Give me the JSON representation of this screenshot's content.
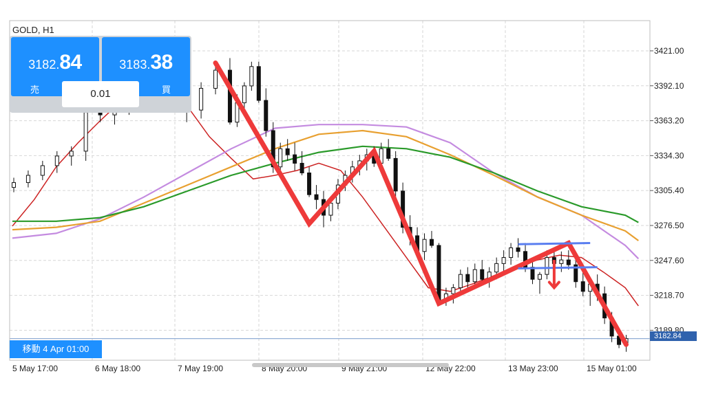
{
  "symbol": "GOLD, H1",
  "trade_panel": {
    "sell": {
      "price_small": "3182.",
      "price_big": "84",
      "label": "売"
    },
    "buy": {
      "price_small": "3183.",
      "price_big": "38",
      "label": "買"
    },
    "lot": "0.01"
  },
  "scroll_position_label": "移動 4 Apr 01:00",
  "current_price_tag": "3182.84",
  "chart_data": {
    "type": "line",
    "y_axis": {
      "ticks": [
        3421.0,
        3392.1,
        3363.2,
        3334.3,
        3305.4,
        3276.5,
        3247.6,
        3218.7,
        3189.8
      ],
      "tick_labels": [
        "3421.00",
        "3392.10",
        "3363.20",
        "3334.30",
        "3305.40",
        "3276.50",
        "3247.60",
        "3218.70",
        "3189.80"
      ],
      "ylim": [
        3165.0,
        3446.0
      ]
    },
    "x_axis": {
      "tick_labels": [
        "5 May 17:00",
        "6 May 18:00",
        "7 May 19:00",
        "8 May 20:00",
        "9 May 21:00",
        "12 May 22:00",
        "13 May 23:00",
        "15 May 01:00"
      ]
    },
    "grid": true,
    "current_price": 3182.84,
    "series": [
      {
        "color": "#cc2222",
        "points": [
          [
            0,
            3276
          ],
          [
            5,
            3298
          ],
          [
            10,
            3325
          ],
          [
            15,
            3345
          ],
          [
            20,
            3363
          ],
          [
            25,
            3380
          ],
          [
            30,
            3390
          ],
          [
            33,
            3398
          ],
          [
            36,
            3395
          ],
          [
            40,
            3375
          ],
          [
            45,
            3350
          ],
          [
            50,
            3332
          ],
          [
            55,
            3315
          ],
          [
            60,
            3318
          ],
          [
            65,
            3322
          ],
          [
            70,
            3328
          ],
          [
            75,
            3322
          ],
          [
            80,
            3300
          ],
          [
            85,
            3275
          ],
          [
            90,
            3250
          ],
          [
            95,
            3225
          ],
          [
            100,
            3222
          ],
          [
            105,
            3228
          ],
          [
            110,
            3235
          ],
          [
            115,
            3242
          ],
          [
            120,
            3248
          ],
          [
            125,
            3252
          ],
          [
            130,
            3250
          ],
          [
            135,
            3238
          ],
          [
            140,
            3225
          ],
          [
            143,
            3210
          ]
        ]
      },
      {
        "color": "#c48be0",
        "points": [
          [
            0,
            3266
          ],
          [
            10,
            3270
          ],
          [
            20,
            3282
          ],
          [
            30,
            3300
          ],
          [
            40,
            3320
          ],
          [
            50,
            3340
          ],
          [
            60,
            3357
          ],
          [
            70,
            3360
          ],
          [
            80,
            3360
          ],
          [
            90,
            3358
          ],
          [
            100,
            3345
          ],
          [
            110,
            3320
          ],
          [
            120,
            3300
          ],
          [
            130,
            3285
          ],
          [
            140,
            3260
          ],
          [
            143,
            3249
          ]
        ]
      },
      {
        "color": "#e8a030",
        "points": [
          [
            0,
            3273
          ],
          [
            10,
            3275
          ],
          [
            20,
            3280
          ],
          [
            30,
            3295
          ],
          [
            40,
            3310
          ],
          [
            50,
            3325
          ],
          [
            60,
            3340
          ],
          [
            70,
            3352
          ],
          [
            80,
            3355
          ],
          [
            90,
            3350
          ],
          [
            100,
            3335
          ],
          [
            110,
            3318
          ],
          [
            120,
            3300
          ],
          [
            130,
            3285
          ],
          [
            140,
            3272
          ],
          [
            143,
            3264
          ]
        ]
      },
      {
        "color": "#2a9a2a",
        "points": [
          [
            0,
            3280
          ],
          [
            10,
            3280
          ],
          [
            20,
            3283
          ],
          [
            30,
            3292
          ],
          [
            40,
            3305
          ],
          [
            50,
            3318
          ],
          [
            60,
            3328
          ],
          [
            70,
            3337
          ],
          [
            80,
            3342
          ],
          [
            90,
            3340
          ],
          [
            100,
            3333
          ],
          [
            110,
            3320
          ],
          [
            120,
            3305
          ],
          [
            130,
            3292
          ],
          [
            140,
            3285
          ],
          [
            143,
            3279
          ]
        ]
      }
    ],
    "candles": [
      [
        0,
        3308,
        3316,
        3304,
        3312
      ],
      [
        2,
        3312,
        3322,
        3308,
        3318
      ],
      [
        4,
        3318,
        3330,
        3314,
        3326
      ],
      [
        6,
        3326,
        3338,
        3320,
        3334
      ],
      [
        8,
        3334,
        3342,
        3326,
        3338
      ],
      [
        10,
        3338,
        3400,
        3330,
        3370
      ],
      [
        12,
        3370,
        3390,
        3362,
        3368
      ],
      [
        14,
        3368,
        3378,
        3360,
        3372
      ],
      [
        16,
        3372,
        3395,
        3368,
        3390
      ],
      [
        18,
        3390,
        3410,
        3380,
        3392
      ],
      [
        20,
        3392,
        3420,
        3385,
        3395
      ],
      [
        22,
        3395,
        3430,
        3380,
        3385
      ],
      [
        24,
        3385,
        3400,
        3362,
        3372
      ],
      [
        26,
        3372,
        3395,
        3365,
        3390
      ],
      [
        28,
        3390,
        3410,
        3385,
        3405
      ],
      [
        30,
        3405,
        3415,
        3360,
        3362
      ],
      [
        31,
        3362,
        3385,
        3358,
        3378
      ],
      [
        32,
        3378,
        3395,
        3370,
        3392
      ],
      [
        33,
        3392,
        3412,
        3388,
        3408
      ],
      [
        34,
        3408,
        3412,
        3378,
        3380
      ],
      [
        35,
        3380,
        3390,
        3350,
        3355
      ],
      [
        36,
        3355,
        3362,
        3320,
        3325
      ],
      [
        37,
        3325,
        3345,
        3318,
        3340
      ],
      [
        38,
        3340,
        3348,
        3330,
        3335
      ],
      [
        39,
        3335,
        3345,
        3322,
        3328
      ],
      [
        40,
        3328,
        3338,
        3318,
        3320
      ],
      [
        41,
        3320,
        3325,
        3300,
        3302
      ],
      [
        42,
        3302,
        3310,
        3290,
        3298
      ],
      [
        43,
        3298,
        3305,
        3275,
        3285
      ],
      [
        44,
        3285,
        3300,
        3280,
        3295
      ],
      [
        45,
        3295,
        3315,
        3290,
        3310
      ],
      [
        46,
        3310,
        3322,
        3305,
        3318
      ],
      [
        47,
        3318,
        3330,
        3312,
        3325
      ],
      [
        48,
        3325,
        3335,
        3318,
        3330
      ],
      [
        49,
        3330,
        3340,
        3322,
        3335
      ],
      [
        50,
        3335,
        3342,
        3325,
        3328
      ],
      [
        51,
        3328,
        3345,
        3320,
        3340
      ],
      [
        52,
        3340,
        3348,
        3330,
        3332
      ],
      [
        53,
        3332,
        3338,
        3300,
        3305
      ],
      [
        54,
        3305,
        3312,
        3270,
        3275
      ],
      [
        55,
        3275,
        3285,
        3260,
        3268
      ],
      [
        56,
        3268,
        3275,
        3250,
        3255
      ],
      [
        57,
        3255,
        3270,
        3248,
        3265
      ],
      [
        58,
        3265,
        3272,
        3258,
        3260
      ],
      [
        59,
        3260,
        3262,
        3210,
        3215
      ],
      [
        60,
        3215,
        3225,
        3210,
        3220
      ],
      [
        61,
        3220,
        3228,
        3212,
        3225
      ],
      [
        62,
        3225,
        3240,
        3220,
        3236
      ],
      [
        63,
        3236,
        3242,
        3225,
        3230
      ],
      [
        64,
        3230,
        3245,
        3226,
        3240
      ],
      [
        65,
        3240,
        3248,
        3228,
        3232
      ],
      [
        66,
        3232,
        3242,
        3225,
        3238
      ],
      [
        67,
        3238,
        3250,
        3232,
        3245
      ],
      [
        68,
        3245,
        3256,
        3238,
        3250
      ],
      [
        69,
        3250,
        3262,
        3244,
        3258
      ],
      [
        70,
        3258,
        3266,
        3250,
        3255
      ],
      [
        71,
        3255,
        3262,
        3238,
        3242
      ],
      [
        72,
        3242,
        3248,
        3228,
        3232
      ],
      [
        73,
        3232,
        3238,
        3220,
        3236
      ],
      [
        74,
        3236,
        3256,
        3232,
        3250
      ],
      [
        75,
        3250,
        3258,
        3240,
        3245
      ],
      [
        76,
        3245,
        3255,
        3238,
        3248
      ],
      [
        77,
        3248,
        3256,
        3240,
        3244
      ],
      [
        78,
        3244,
        3250,
        3225,
        3230
      ],
      [
        79,
        3230,
        3238,
        3218,
        3222
      ],
      [
        80,
        3222,
        3232,
        3210,
        3228
      ],
      [
        81,
        3228,
        3236,
        3214,
        3220
      ],
      [
        82,
        3220,
        3226,
        3195,
        3200
      ],
      [
        83,
        3200,
        3205,
        3180,
        3185
      ],
      [
        84,
        3185,
        3192,
        3175,
        3178
      ],
      [
        85,
        3178,
        3186,
        3172,
        3183
      ]
    ],
    "annotations": {
      "zigzag": [
        [
          28,
          3411
        ],
        [
          41,
          3278
        ],
        [
          50,
          3338
        ],
        [
          59,
          3212
        ],
        [
          77,
          3262
        ],
        [
          85,
          3178
        ]
      ],
      "resistance_line": [
        [
          70,
          3261
        ],
        [
          80,
          3262
        ]
      ],
      "support_line": [
        [
          70,
          3241
        ],
        [
          81,
          3242
        ]
      ],
      "arrow": [
        [
          75,
          3248
        ],
        [
          75,
          3225
        ]
      ]
    }
  }
}
